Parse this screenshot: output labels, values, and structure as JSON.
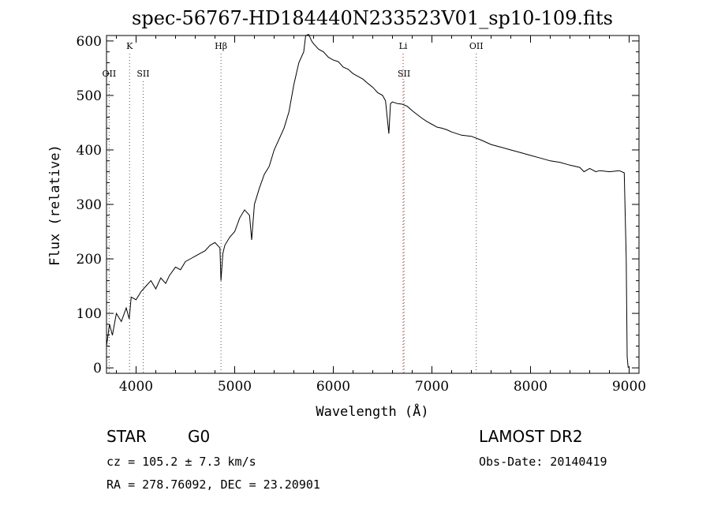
{
  "chart_data": {
    "type": "line",
    "title": "spec-56767-HD184440N233523V01_sp10-109.fits",
    "xlabel": "Wavelength (Å)",
    "ylabel": "Flux (relative)",
    "xlim": [
      3700,
      9100
    ],
    "ylim": [
      -10,
      610
    ],
    "x_ticks": [
      4000,
      5000,
      6000,
      7000,
      8000,
      9000
    ],
    "y_ticks": [
      0,
      100,
      200,
      300,
      400,
      500,
      600
    ],
    "grid": false,
    "series": [
      {
        "x": [
          3700,
          3730,
          3760,
          3800,
          3850,
          3900,
          3930,
          3950,
          4000,
          4050,
          4100,
          4150,
          4200,
          4250,
          4300,
          4340,
          4400,
          4450,
          4500,
          4550,
          4600,
          4650,
          4700,
          4750,
          4800,
          4850,
          4861,
          4880,
          4900,
          4950,
          5000,
          5050,
          5100,
          5150,
          5172,
          5200,
          5250,
          5300,
          5350,
          5400,
          5450,
          5500,
          5550,
          5600,
          5650,
          5700,
          5720,
          5750,
          5780,
          5800,
          5850,
          5900,
          5950,
          6000,
          6050,
          6100,
          6150,
          6200,
          6250,
          6300,
          6350,
          6400,
          6450,
          6500,
          6530,
          6563,
          6580,
          6600,
          6650,
          6700,
          6750,
          6800,
          6850,
          6900,
          6950,
          7000,
          7050,
          7100,
          7150,
          7200,
          7300,
          7400,
          7500,
          7600,
          7700,
          7800,
          7900,
          8000,
          8100,
          8200,
          8300,
          8400,
          8500,
          8542,
          8600,
          8662,
          8700,
          8800,
          8900,
          8950,
          8970,
          8980,
          8990
        ],
        "y": [
          40,
          80,
          60,
          100,
          85,
          110,
          90,
          130,
          125,
          140,
          150,
          160,
          145,
          165,
          155,
          170,
          185,
          180,
          195,
          200,
          205,
          210,
          215,
          225,
          230,
          220,
          160,
          210,
          225,
          240,
          250,
          275,
          290,
          280,
          235,
          300,
          330,
          355,
          370,
          400,
          420,
          440,
          470,
          520,
          560,
          580,
          610,
          612,
          600,
          595,
          585,
          580,
          570,
          565,
          562,
          552,
          548,
          540,
          535,
          530,
          522,
          515,
          505,
          500,
          490,
          430,
          485,
          488,
          485,
          484,
          480,
          472,
          465,
          458,
          452,
          447,
          442,
          440,
          437,
          433,
          427,
          425,
          418,
          410,
          405,
          400,
          395,
          390,
          385,
          380,
          377,
          372,
          368,
          360,
          366,
          360,
          362,
          360,
          362,
          358,
          200,
          20,
          0
        ]
      }
    ],
    "annotations": [
      {
        "label": "K",
        "x": 3934,
        "style": "dotted",
        "row": "top"
      },
      {
        "label": "OII",
        "x": 3727,
        "style": "dotted",
        "row": "second"
      },
      {
        "label": "SII",
        "x": 4072,
        "style": "dotted",
        "row": "second"
      },
      {
        "label": "Hβ",
        "x": 4861,
        "style": "dotted",
        "row": "top"
      },
      {
        "label": "Li",
        "x": 6708,
        "style": "red-dotted",
        "row": "top"
      },
      {
        "label": "SII",
        "x": 6717,
        "style": "dotted",
        "row": "second"
      },
      {
        "label": "OII",
        "x": 7450,
        "style": "dotted",
        "row": "top"
      }
    ]
  },
  "info": {
    "object_type": "STAR",
    "subclass": "G0",
    "survey": "LAMOST DR2",
    "cz_line": "cz = 105.2 ± 7.3 km/s",
    "obs_date": "Obs-Date: 20140419",
    "coords": "RA = 278.76092, DEC =  23.20901"
  },
  "colors": {
    "line": "#000000",
    "li_marker": "#cc0000",
    "line_marker": "#555555"
  }
}
